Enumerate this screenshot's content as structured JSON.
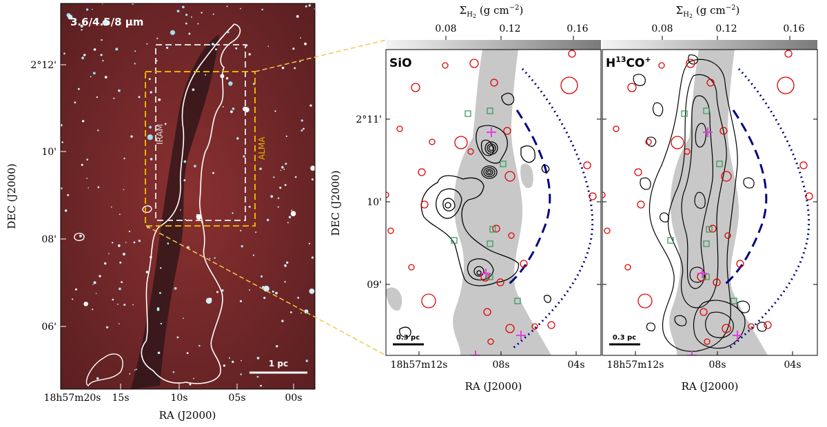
{
  "figure": {
    "left_panel": {
      "band_label": "3.6/4.5/8 μm",
      "box_iram_label": "IRAM",
      "box_alma_label": "ALMA",
      "scalebar_label": "1 pc",
      "dec_ticks": [
        "2°12'",
        "10'",
        "08'",
        "06'"
      ],
      "ra_ticks": [
        "18h57m20s",
        "15s",
        "10s",
        "05s",
        "00s"
      ],
      "xlabel": "RA (J2000)",
      "ylabel": "DEC (J2000)"
    },
    "panels": [
      {
        "name": "SiO",
        "label_main": "SiO",
        "label_sup": "",
        "label_rest": "",
        "scalebar_label": "0.3 pc"
      },
      {
        "name": "H13CO+",
        "label_main": "H",
        "label_sup": "13",
        "label_rest": "CO",
        "label_sup2": "+",
        "scalebar_label": "0.3 pc"
      }
    ],
    "right": {
      "top_axis_label": "Σ",
      "top_axis_sub": "H",
      "top_axis_sub2": "2",
      "top_axis_units": "(g cm",
      "top_axis_units_sup": "−2",
      "top_axis_units_end": ")",
      "top_ticks": [
        "0.08",
        "0.12",
        "0.16"
      ],
      "dec_ticks": [
        "2°11'",
        "10'",
        "09'"
      ],
      "ra_ticks": [
        "18h57m12s",
        "08s",
        "04s"
      ],
      "xlabel": "RA (J2000)",
      "ylabel": "DEC (J2000)"
    },
    "colors": {
      "ir_background": "#7a2a2a",
      "yellow_box": "#e8b400",
      "dashed_arc": "#000080",
      "red_circles": "#e00000",
      "green_squares": "#3a9a5a",
      "magenta_plus": "#e040e0",
      "contour": "#000000",
      "gray_fill": "#c8c8c8"
    }
  }
}
